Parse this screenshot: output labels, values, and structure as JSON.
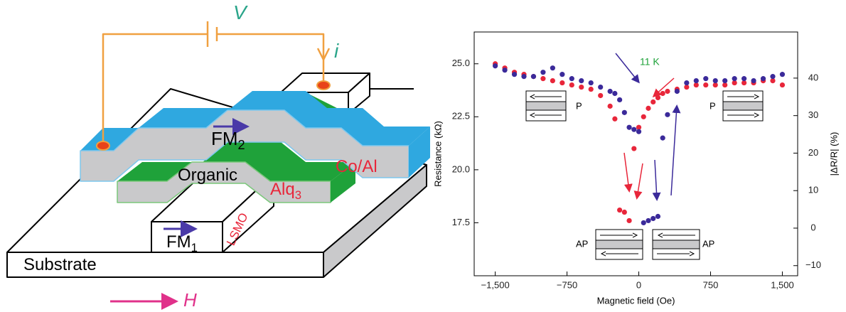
{
  "diagram": {
    "labels": [
      {
        "text": "V"
      },
      {
        "text": "i"
      },
      {
        "text": "FM",
        "sub": "2"
      },
      {
        "text": "Organic"
      },
      {
        "text": "Alq",
        "sub": "3"
      },
      {
        "text": "Co/Al"
      },
      {
        "text": "LSMO"
      },
      {
        "text": "FM",
        "sub": "1"
      },
      {
        "text": "Substrate"
      },
      {
        "text": "H"
      }
    ]
  },
  "chart_data": {
    "type": "scatter",
    "xlabel": "Magnetic field (Oe)",
    "ylabel": "Resistance (kΩ)",
    "y2label": "|ΔR/R| (%)",
    "annotations": [
      "11 K",
      "P",
      "P",
      "AP",
      "AP"
    ],
    "x": [
      -1500,
      -1400,
      -1300,
      -1200,
      -1100,
      -1000,
      -900,
      -800,
      -700,
      -600,
      -500,
      -400,
      -300,
      -250,
      -200,
      -150,
      -100,
      -50,
      0,
      50,
      100,
      150,
      200,
      250,
      300,
      400,
      500,
      600,
      700,
      800,
      900,
      1000,
      1100,
      1200,
      1300,
      1400,
      1500
    ],
    "series": [
      {
        "color": "#e8263a",
        "values": [
          25.0,
          24.8,
          24.6,
          24.5,
          24.4,
          24.3,
          24.2,
          24.1,
          24.0,
          23.9,
          23.8,
          23.5,
          23.0,
          22.4,
          18.1,
          18.0,
          17.6,
          21.0,
          22.0,
          22.5,
          22.9,
          23.2,
          23.4,
          23.6,
          23.7,
          23.8,
          23.9,
          24.0,
          24.0,
          24.0,
          24.0,
          24.1,
          24.1,
          24.1,
          24.2,
          24.2,
          24.0
        ]
      },
      {
        "color": "#3b2a9a",
        "values": [
          24.9,
          24.7,
          24.5,
          24.4,
          24.4,
          24.6,
          24.8,
          24.5,
          24.3,
          24.2,
          24.1,
          23.9,
          23.7,
          23.6,
          23.3,
          22.7,
          22.0,
          21.9,
          21.8,
          17.5,
          17.6,
          17.7,
          17.8,
          21.5,
          22.6,
          23.7,
          24.1,
          24.2,
          24.3,
          24.2,
          24.2,
          24.3,
          24.3,
          24.2,
          24.3,
          24.4,
          24.5
        ]
      }
    ],
    "xlim": [
      -1720,
      1660
    ],
    "xticks": [
      {
        "value": -1500,
        "label": "−1,500"
      },
      {
        "value": -750,
        "label": "−750"
      },
      0,
      750,
      {
        "value": 1500,
        "label": "1,500"
      }
    ],
    "ylim": [
      15.0,
      26.5
    ],
    "yticks": [
      17.5,
      {
        "value": 20,
        "label": "20.0"
      },
      22.5,
      {
        "value": 25,
        "label": "25.0"
      }
    ],
    "y2lim": [
      -12.7,
      52.3
    ],
    "y2ticks": [
      {
        "value": -10,
        "label": "−10"
      },
      0,
      10,
      20,
      30,
      40
    ]
  }
}
